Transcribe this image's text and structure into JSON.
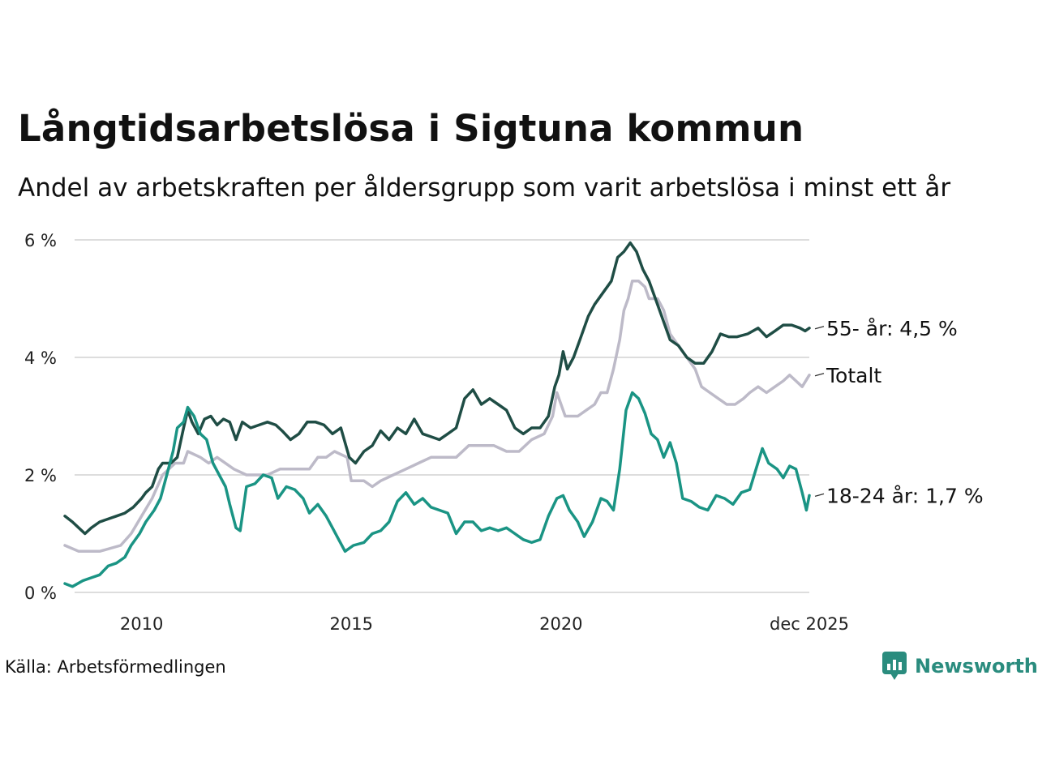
{
  "title": "Långtidsarbetslösa i Sigtuna kommun",
  "subtitle": "Andel av arbetskraften per åldersgrupp som varit arbetslösa i minst ett år",
  "source": "Källa: Arbetsförmedlingen",
  "brand": "Newsworthy",
  "colors": {
    "older": "#1f4d45",
    "young": "#1a9484",
    "total": "#bdbac8",
    "grid": "#dddddd",
    "brand": "#2a8c7e"
  },
  "chart_data": {
    "type": "line",
    "x_unit": "year (decimal)",
    "xlim": [
      2008.17,
      2025.92
    ],
    "ylim": [
      0,
      6
    ],
    "y_ticks": [
      {
        "value": 0,
        "label": "0 %"
      },
      {
        "value": 2,
        "label": "2 %"
      },
      {
        "value": 4,
        "label": "4 %"
      },
      {
        "value": 6,
        "label": "6 %"
      }
    ],
    "x_ticks": [
      {
        "value": 2010,
        "label": "2010"
      },
      {
        "value": 2015,
        "label": "2015"
      },
      {
        "value": 2020,
        "label": "2020"
      },
      {
        "value": 2025.92,
        "label": "dec 2025"
      }
    ],
    "series": [
      {
        "id": "total",
        "name": "Totalt",
        "end_label": "Totalt",
        "color": "#bdbac8",
        "points": [
          [
            2008.17,
            0.8
          ],
          [
            2008.5,
            0.7
          ],
          [
            2009.0,
            0.7
          ],
          [
            2009.5,
            0.8
          ],
          [
            2009.75,
            1.0
          ],
          [
            2010.0,
            1.3
          ],
          [
            2010.25,
            1.6
          ],
          [
            2010.5,
            2.0
          ],
          [
            2010.8,
            2.2
          ],
          [
            2011.0,
            2.2
          ],
          [
            2011.1,
            2.4
          ],
          [
            2011.4,
            2.3
          ],
          [
            2011.6,
            2.2
          ],
          [
            2011.8,
            2.3
          ],
          [
            2012.2,
            2.1
          ],
          [
            2012.5,
            2.0
          ],
          [
            2012.8,
            2.0
          ],
          [
            2013.0,
            2.0
          ],
          [
            2013.3,
            2.1
          ],
          [
            2013.7,
            2.1
          ],
          [
            2014.0,
            2.1
          ],
          [
            2014.2,
            2.3
          ],
          [
            2014.4,
            2.3
          ],
          [
            2014.6,
            2.4
          ],
          [
            2014.9,
            2.3
          ],
          [
            2015.0,
            1.9
          ],
          [
            2015.3,
            1.9
          ],
          [
            2015.5,
            1.8
          ],
          [
            2015.7,
            1.9
          ],
          [
            2016.0,
            2.0
          ],
          [
            2016.3,
            2.1
          ],
          [
            2016.6,
            2.2
          ],
          [
            2016.9,
            2.3
          ],
          [
            2017.2,
            2.3
          ],
          [
            2017.5,
            2.3
          ],
          [
            2017.8,
            2.5
          ],
          [
            2018.1,
            2.5
          ],
          [
            2018.4,
            2.5
          ],
          [
            2018.7,
            2.4
          ],
          [
            2019.0,
            2.4
          ],
          [
            2019.3,
            2.6
          ],
          [
            2019.6,
            2.7
          ],
          [
            2019.8,
            3.0
          ],
          [
            2019.9,
            3.4
          ],
          [
            2020.1,
            3.0
          ],
          [
            2020.4,
            3.0
          ],
          [
            2020.6,
            3.1
          ],
          [
            2020.8,
            3.2
          ],
          [
            2020.95,
            3.4
          ],
          [
            2021.1,
            3.4
          ],
          [
            2021.25,
            3.8
          ],
          [
            2021.4,
            4.3
          ],
          [
            2021.5,
            4.8
          ],
          [
            2021.6,
            5.0
          ],
          [
            2021.7,
            5.3
          ],
          [
            2021.85,
            5.3
          ],
          [
            2022.0,
            5.2
          ],
          [
            2022.1,
            5.0
          ],
          [
            2022.3,
            5.0
          ],
          [
            2022.45,
            4.8
          ],
          [
            2022.6,
            4.4
          ],
          [
            2022.8,
            4.2
          ],
          [
            2023.0,
            4.0
          ],
          [
            2023.2,
            3.8
          ],
          [
            2023.35,
            3.5
          ],
          [
            2023.55,
            3.4
          ],
          [
            2023.75,
            3.3
          ],
          [
            2023.95,
            3.2
          ],
          [
            2024.15,
            3.2
          ],
          [
            2024.35,
            3.3
          ],
          [
            2024.5,
            3.4
          ],
          [
            2024.7,
            3.5
          ],
          [
            2024.9,
            3.4
          ],
          [
            2025.1,
            3.5
          ],
          [
            2025.3,
            3.6
          ],
          [
            2025.45,
            3.7
          ],
          [
            2025.6,
            3.6
          ],
          [
            2025.75,
            3.5
          ],
          [
            2025.92,
            3.7
          ]
        ]
      },
      {
        "id": "older",
        "name": "55- år",
        "end_label": "55- år: 4,5 %",
        "color": "#1f4d45",
        "points": [
          [
            2008.17,
            1.3
          ],
          [
            2008.35,
            1.2
          ],
          [
            2008.5,
            1.1
          ],
          [
            2008.65,
            1.0
          ],
          [
            2008.8,
            1.1
          ],
          [
            2009.0,
            1.2
          ],
          [
            2009.2,
            1.25
          ],
          [
            2009.4,
            1.3
          ],
          [
            2009.6,
            1.35
          ],
          [
            2009.8,
            1.45
          ],
          [
            2010.0,
            1.6
          ],
          [
            2010.1,
            1.7
          ],
          [
            2010.25,
            1.8
          ],
          [
            2010.4,
            2.1
          ],
          [
            2010.5,
            2.2
          ],
          [
            2010.7,
            2.2
          ],
          [
            2010.85,
            2.3
          ],
          [
            2011.0,
            2.8
          ],
          [
            2011.1,
            3.1
          ],
          [
            2011.2,
            2.9
          ],
          [
            2011.35,
            2.7
          ],
          [
            2011.5,
            2.95
          ],
          [
            2011.65,
            3.0
          ],
          [
            2011.8,
            2.85
          ],
          [
            2011.95,
            2.95
          ],
          [
            2012.1,
            2.9
          ],
          [
            2012.25,
            2.6
          ],
          [
            2012.4,
            2.9
          ],
          [
            2012.6,
            2.8
          ],
          [
            2012.8,
            2.85
          ],
          [
            2013.0,
            2.9
          ],
          [
            2013.2,
            2.85
          ],
          [
            2013.35,
            2.75
          ],
          [
            2013.55,
            2.6
          ],
          [
            2013.75,
            2.7
          ],
          [
            2013.95,
            2.9
          ],
          [
            2014.15,
            2.9
          ],
          [
            2014.35,
            2.85
          ],
          [
            2014.55,
            2.7
          ],
          [
            2014.75,
            2.8
          ],
          [
            2014.95,
            2.3
          ],
          [
            2015.1,
            2.2
          ],
          [
            2015.3,
            2.4
          ],
          [
            2015.5,
            2.5
          ],
          [
            2015.7,
            2.75
          ],
          [
            2015.9,
            2.6
          ],
          [
            2016.1,
            2.8
          ],
          [
            2016.3,
            2.7
          ],
          [
            2016.5,
            2.95
          ],
          [
            2016.7,
            2.7
          ],
          [
            2016.9,
            2.65
          ],
          [
            2017.1,
            2.6
          ],
          [
            2017.3,
            2.7
          ],
          [
            2017.5,
            2.8
          ],
          [
            2017.7,
            3.3
          ],
          [
            2017.9,
            3.45
          ],
          [
            2018.1,
            3.2
          ],
          [
            2018.3,
            3.3
          ],
          [
            2018.5,
            3.2
          ],
          [
            2018.7,
            3.1
          ],
          [
            2018.9,
            2.8
          ],
          [
            2019.1,
            2.7
          ],
          [
            2019.3,
            2.8
          ],
          [
            2019.5,
            2.8
          ],
          [
            2019.7,
            3.0
          ],
          [
            2019.85,
            3.5
          ],
          [
            2019.95,
            3.7
          ],
          [
            2020.05,
            4.1
          ],
          [
            2020.15,
            3.8
          ],
          [
            2020.3,
            4.0
          ],
          [
            2020.45,
            4.3
          ],
          [
            2020.65,
            4.7
          ],
          [
            2020.8,
            4.9
          ],
          [
            2021.0,
            5.1
          ],
          [
            2021.2,
            5.3
          ],
          [
            2021.35,
            5.7
          ],
          [
            2021.5,
            5.8
          ],
          [
            2021.65,
            5.95
          ],
          [
            2021.8,
            5.8
          ],
          [
            2021.95,
            5.5
          ],
          [
            2022.1,
            5.3
          ],
          [
            2022.25,
            5.0
          ],
          [
            2022.4,
            4.7
          ],
          [
            2022.6,
            4.3
          ],
          [
            2022.8,
            4.2
          ],
          [
            2023.0,
            4.0
          ],
          [
            2023.2,
            3.9
          ],
          [
            2023.4,
            3.9
          ],
          [
            2023.6,
            4.1
          ],
          [
            2023.8,
            4.4
          ],
          [
            2024.0,
            4.35
          ],
          [
            2024.2,
            4.35
          ],
          [
            2024.45,
            4.4
          ],
          [
            2024.7,
            4.5
          ],
          [
            2024.9,
            4.35
          ],
          [
            2025.1,
            4.45
          ],
          [
            2025.3,
            4.55
          ],
          [
            2025.5,
            4.55
          ],
          [
            2025.7,
            4.5
          ],
          [
            2025.82,
            4.45
          ],
          [
            2025.92,
            4.5
          ]
        ]
      },
      {
        "id": "young",
        "name": "18-24 år",
        "end_label": "18-24 år: 1,7 %",
        "color": "#1a9484",
        "points": [
          [
            2008.17,
            0.15
          ],
          [
            2008.35,
            0.1
          ],
          [
            2008.6,
            0.2
          ],
          [
            2008.8,
            0.25
          ],
          [
            2009.0,
            0.3
          ],
          [
            2009.2,
            0.45
          ],
          [
            2009.4,
            0.5
          ],
          [
            2009.6,
            0.6
          ],
          [
            2009.75,
            0.8
          ],
          [
            2009.95,
            1.0
          ],
          [
            2010.1,
            1.2
          ],
          [
            2010.3,
            1.4
          ],
          [
            2010.45,
            1.6
          ],
          [
            2010.6,
            2.0
          ],
          [
            2010.75,
            2.4
          ],
          [
            2010.85,
            2.8
          ],
          [
            2011.0,
            2.9
          ],
          [
            2011.1,
            3.15
          ],
          [
            2011.25,
            3.0
          ],
          [
            2011.4,
            2.7
          ],
          [
            2011.55,
            2.6
          ],
          [
            2011.7,
            2.2
          ],
          [
            2011.85,
            2.0
          ],
          [
            2012.0,
            1.8
          ],
          [
            2012.1,
            1.5
          ],
          [
            2012.25,
            1.1
          ],
          [
            2012.35,
            1.05
          ],
          [
            2012.5,
            1.8
          ],
          [
            2012.7,
            1.85
          ],
          [
            2012.9,
            2.0
          ],
          [
            2013.1,
            1.95
          ],
          [
            2013.25,
            1.6
          ],
          [
            2013.45,
            1.8
          ],
          [
            2013.65,
            1.75
          ],
          [
            2013.85,
            1.6
          ],
          [
            2014.0,
            1.35
          ],
          [
            2014.2,
            1.5
          ],
          [
            2014.4,
            1.3
          ],
          [
            2014.55,
            1.1
          ],
          [
            2014.7,
            0.9
          ],
          [
            2014.85,
            0.7
          ],
          [
            2015.05,
            0.8
          ],
          [
            2015.3,
            0.85
          ],
          [
            2015.5,
            1.0
          ],
          [
            2015.7,
            1.05
          ],
          [
            2015.9,
            1.2
          ],
          [
            2016.1,
            1.55
          ],
          [
            2016.3,
            1.7
          ],
          [
            2016.5,
            1.5
          ],
          [
            2016.7,
            1.6
          ],
          [
            2016.9,
            1.45
          ],
          [
            2017.1,
            1.4
          ],
          [
            2017.3,
            1.35
          ],
          [
            2017.5,
            1.0
          ],
          [
            2017.7,
            1.2
          ],
          [
            2017.9,
            1.2
          ],
          [
            2018.1,
            1.05
          ],
          [
            2018.3,
            1.1
          ],
          [
            2018.5,
            1.05
          ],
          [
            2018.7,
            1.1
          ],
          [
            2018.9,
            1.0
          ],
          [
            2019.1,
            0.9
          ],
          [
            2019.3,
            0.85
          ],
          [
            2019.5,
            0.9
          ],
          [
            2019.7,
            1.3
          ],
          [
            2019.9,
            1.6
          ],
          [
            2020.05,
            1.65
          ],
          [
            2020.2,
            1.4
          ],
          [
            2020.4,
            1.2
          ],
          [
            2020.55,
            0.95
          ],
          [
            2020.75,
            1.2
          ],
          [
            2020.95,
            1.6
          ],
          [
            2021.1,
            1.55
          ],
          [
            2021.25,
            1.4
          ],
          [
            2021.4,
            2.1
          ],
          [
            2021.55,
            3.1
          ],
          [
            2021.7,
            3.4
          ],
          [
            2021.85,
            3.3
          ],
          [
            2022.0,
            3.05
          ],
          [
            2022.15,
            2.7
          ],
          [
            2022.3,
            2.6
          ],
          [
            2022.45,
            2.3
          ],
          [
            2022.6,
            2.55
          ],
          [
            2022.75,
            2.2
          ],
          [
            2022.9,
            1.6
          ],
          [
            2023.1,
            1.55
          ],
          [
            2023.3,
            1.45
          ],
          [
            2023.5,
            1.4
          ],
          [
            2023.7,
            1.65
          ],
          [
            2023.9,
            1.6
          ],
          [
            2024.1,
            1.5
          ],
          [
            2024.3,
            1.7
          ],
          [
            2024.5,
            1.75
          ],
          [
            2024.65,
            2.1
          ],
          [
            2024.8,
            2.45
          ],
          [
            2024.95,
            2.2
          ],
          [
            2025.15,
            2.1
          ],
          [
            2025.3,
            1.95
          ],
          [
            2025.45,
            2.15
          ],
          [
            2025.6,
            2.1
          ],
          [
            2025.75,
            1.7
          ],
          [
            2025.85,
            1.4
          ],
          [
            2025.92,
            1.65
          ]
        ]
      }
    ]
  }
}
